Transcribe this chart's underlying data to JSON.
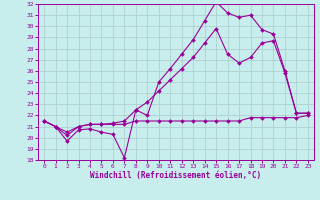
{
  "xlabel": "Windchill (Refroidissement éolien,°C)",
  "xlim": [
    -0.5,
    23.5
  ],
  "ylim": [
    18,
    32
  ],
  "yticks": [
    18,
    19,
    20,
    21,
    22,
    23,
    24,
    25,
    26,
    27,
    28,
    29,
    30,
    31,
    32
  ],
  "xticks": [
    0,
    1,
    2,
    3,
    4,
    5,
    6,
    7,
    8,
    9,
    10,
    11,
    12,
    13,
    14,
    15,
    16,
    17,
    18,
    19,
    20,
    21,
    22,
    23
  ],
  "bg_color": "#c8eded",
  "line_color": "#990099",
  "grid_color": "#b0d0d0",
  "line1_x": [
    0,
    1,
    2,
    3,
    4,
    5,
    6,
    7,
    8,
    9,
    10,
    11,
    12,
    13,
    14,
    15,
    16,
    17,
    18,
    19,
    20,
    21,
    22,
    23
  ],
  "line1_y": [
    21.5,
    21.0,
    19.7,
    20.7,
    20.8,
    20.5,
    20.3,
    18.2,
    22.5,
    22.0,
    25.0,
    26.2,
    27.5,
    28.8,
    30.5,
    32.2,
    31.2,
    30.8,
    31.0,
    29.7,
    29.3,
    26.0,
    22.2,
    22.2
  ],
  "line2_x": [
    0,
    1,
    2,
    3,
    4,
    5,
    6,
    7,
    8,
    9,
    10,
    11,
    12,
    13,
    14,
    15,
    16,
    17,
    18,
    19,
    20,
    21,
    22,
    23
  ],
  "line2_y": [
    21.5,
    21.0,
    20.5,
    21.0,
    21.2,
    21.2,
    21.2,
    21.2,
    21.5,
    21.5,
    21.5,
    21.5,
    21.5,
    21.5,
    21.5,
    21.5,
    21.5,
    21.5,
    21.8,
    21.8,
    21.8,
    21.8,
    21.8,
    22.0
  ],
  "line3_x": [
    0,
    1,
    2,
    3,
    4,
    5,
    6,
    7,
    8,
    9,
    10,
    11,
    12,
    13,
    14,
    15,
    16,
    17,
    18,
    19,
    20,
    21,
    22,
    23
  ],
  "line3_y": [
    21.5,
    21.0,
    20.2,
    21.0,
    21.2,
    21.2,
    21.3,
    21.5,
    22.5,
    23.2,
    24.2,
    25.2,
    26.2,
    27.2,
    28.5,
    29.8,
    27.5,
    26.7,
    27.2,
    28.5,
    28.7,
    25.8,
    22.2,
    22.2
  ]
}
